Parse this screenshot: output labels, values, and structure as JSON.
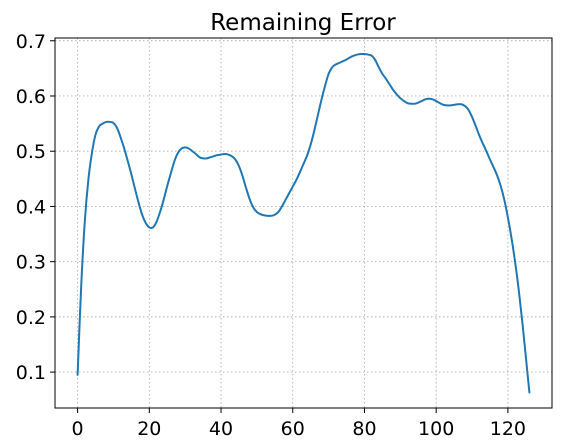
{
  "chart_data": {
    "type": "line",
    "title": "Remaining Error",
    "xlabel": "",
    "ylabel": "",
    "xlim": [
      -6.3,
      132.3
    ],
    "ylim": [
      0.035,
      0.705
    ],
    "x_ticks": [
      0,
      20,
      40,
      60,
      80,
      100,
      120
    ],
    "x_tick_labels": [
      "0",
      "20",
      "40",
      "60",
      "80",
      "100",
      "120"
    ],
    "y_ticks": [
      0.1,
      0.2,
      0.3,
      0.4,
      0.5,
      0.6,
      0.7
    ],
    "y_tick_labels": [
      "0.1",
      "0.2",
      "0.3",
      "0.4",
      "0.5",
      "0.6",
      "0.7"
    ],
    "grid": true,
    "legend": "none",
    "series": [
      {
        "color": "#1f77b4",
        "x": [
          0,
          1,
          2,
          3,
          4,
          5,
          6,
          7,
          8,
          9,
          10,
          11,
          12,
          13,
          14,
          15,
          16,
          17,
          18,
          19,
          20,
          21,
          22,
          23,
          24,
          25,
          26,
          27,
          28,
          29,
          30,
          31,
          32,
          33,
          34,
          35,
          36,
          37,
          38,
          39,
          40,
          41,
          42,
          43,
          44,
          45,
          46,
          47,
          48,
          49,
          50,
          51,
          52,
          53,
          54,
          55,
          56,
          57,
          58,
          59,
          60,
          61,
          62,
          63,
          64,
          65,
          66,
          67,
          68,
          69,
          70,
          71,
          72,
          73,
          74,
          75,
          76,
          77,
          78,
          79,
          80,
          81,
          82,
          83,
          84,
          85,
          86,
          87,
          88,
          89,
          90,
          91,
          92,
          93,
          94,
          95,
          96,
          97,
          98,
          99,
          100,
          101,
          102,
          103,
          104,
          105,
          106,
          107,
          108,
          109,
          110,
          111,
          112,
          113,
          114,
          115,
          116,
          117,
          118,
          119,
          120,
          121,
          122,
          123,
          124,
          125,
          126
        ],
        "y": [
          0.095,
          0.255,
          0.372,
          0.448,
          0.497,
          0.53,
          0.545,
          0.55,
          0.553,
          0.553,
          0.551,
          0.542,
          0.525,
          0.505,
          0.482,
          0.458,
          0.432,
          0.407,
          0.385,
          0.37,
          0.362,
          0.362,
          0.372,
          0.39,
          0.412,
          0.437,
          0.46,
          0.482,
          0.497,
          0.505,
          0.507,
          0.505,
          0.5,
          0.495,
          0.489,
          0.487,
          0.487,
          0.489,
          0.491,
          0.493,
          0.494,
          0.495,
          0.494,
          0.491,
          0.485,
          0.473,
          0.455,
          0.433,
          0.413,
          0.398,
          0.39,
          0.386,
          0.384,
          0.383,
          0.383,
          0.385,
          0.39,
          0.4,
          0.412,
          0.424,
          0.436,
          0.448,
          0.462,
          0.477,
          0.492,
          0.512,
          0.537,
          0.565,
          0.593,
          0.618,
          0.64,
          0.652,
          0.657,
          0.66,
          0.663,
          0.666,
          0.67,
          0.673,
          0.675,
          0.676,
          0.676,
          0.675,
          0.673,
          0.665,
          0.652,
          0.64,
          0.631,
          0.621,
          0.611,
          0.603,
          0.596,
          0.591,
          0.587,
          0.586,
          0.586,
          0.588,
          0.591,
          0.594,
          0.595,
          0.594,
          0.591,
          0.587,
          0.584,
          0.583,
          0.583,
          0.584,
          0.585,
          0.585,
          0.582,
          0.575,
          0.562,
          0.546,
          0.529,
          0.514,
          0.5,
          0.485,
          0.471,
          0.456,
          0.437,
          0.412,
          0.38,
          0.343,
          0.3,
          0.25,
          0.192,
          0.128,
          0.063
        ]
      }
    ]
  }
}
